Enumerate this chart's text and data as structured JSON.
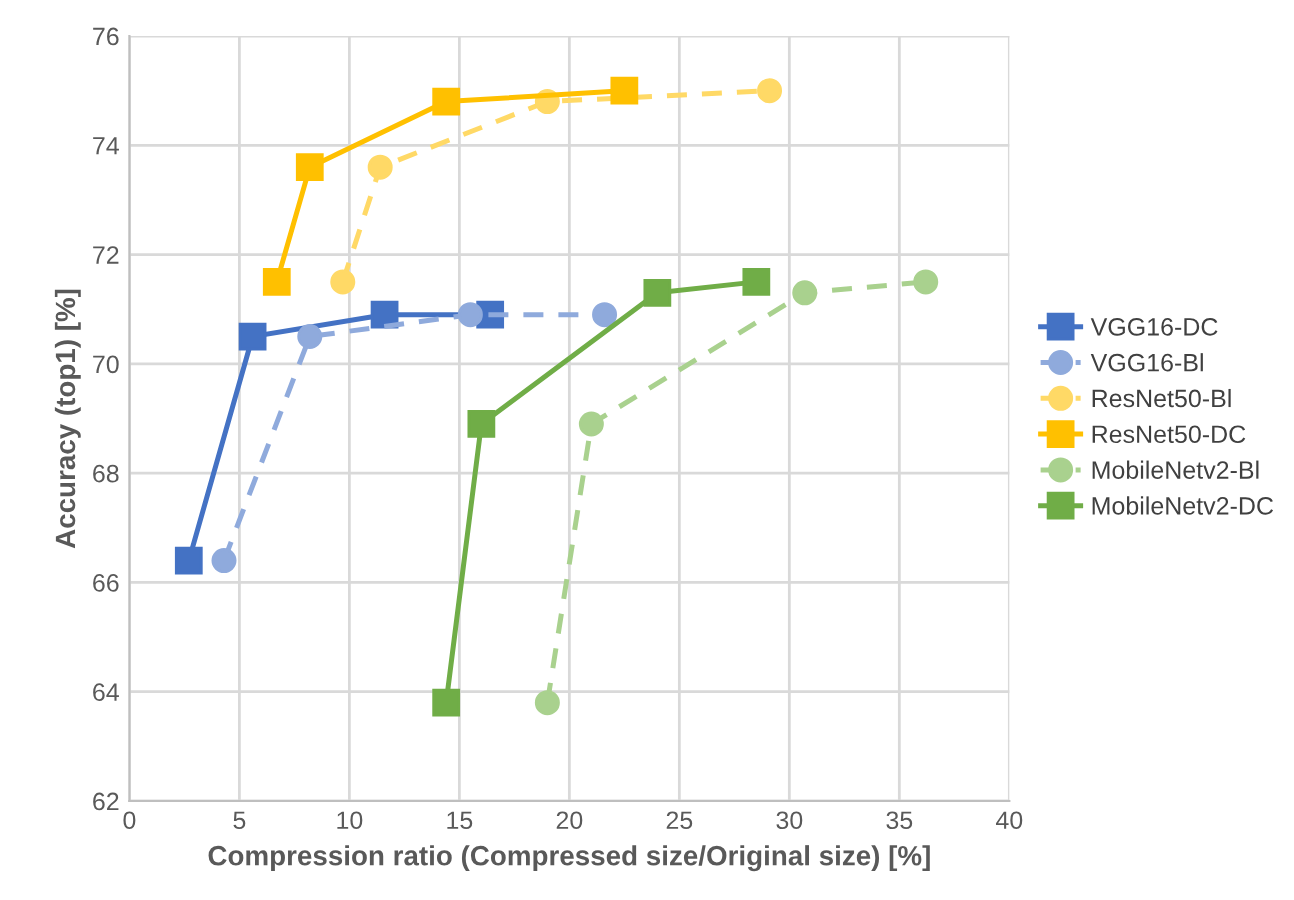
{
  "chart_data": {
    "type": "line",
    "xlabel": "Compression ratio (Compressed size/Original size) [%]",
    "ylabel": "Accuracy (top1) [%]",
    "xlim": [
      0,
      40
    ],
    "xticks": [
      0,
      5,
      10,
      15,
      20,
      25,
      30,
      35,
      40
    ],
    "ylim": [
      62,
      76
    ],
    "yticks": [
      62,
      64,
      66,
      68,
      70,
      72,
      74,
      76
    ],
    "grid": true,
    "legend": "right",
    "series": [
      {
        "name": "VGG16-DC",
        "color": "#4472c4",
        "marker": "square",
        "line_style": "solid",
        "x": [
          2.7,
          5.6,
          11.6,
          16.4
        ],
        "values": [
          66.4,
          70.5,
          70.9,
          70.9
        ]
      },
      {
        "name": "VGG16-Bl",
        "color": "#8faadc",
        "marker": "circle",
        "line_style": "dashed",
        "x": [
          4.3,
          8.2,
          15.5,
          21.6
        ],
        "values": [
          66.4,
          70.5,
          70.9,
          70.9
        ]
      },
      {
        "name": "ResNet50-Bl",
        "color": "#ffd966",
        "marker": "circle",
        "line_style": "dashed",
        "x": [
          9.7,
          11.4,
          19.0,
          29.1
        ],
        "values": [
          71.5,
          73.6,
          74.8,
          75.0
        ]
      },
      {
        "name": "ResNet50-DC",
        "color": "#ffc000",
        "marker": "square",
        "line_style": "solid",
        "x": [
          6.7,
          8.2,
          14.4,
          22.5
        ],
        "values": [
          71.5,
          73.6,
          74.8,
          75.0
        ]
      },
      {
        "name": "MobileNetv2-Bl",
        "color": "#a9d18e",
        "marker": "circle",
        "line_style": "dashed",
        "x": [
          19.0,
          21.0,
          30.7,
          36.2
        ],
        "values": [
          63.8,
          68.9,
          71.3,
          71.5
        ]
      },
      {
        "name": "MobileNetv2-DC",
        "color": "#70ad47",
        "marker": "square",
        "line_style": "solid",
        "x": [
          14.4,
          16.0,
          24.0,
          28.5
        ],
        "values": [
          63.8,
          68.9,
          71.3,
          71.5
        ]
      }
    ]
  }
}
